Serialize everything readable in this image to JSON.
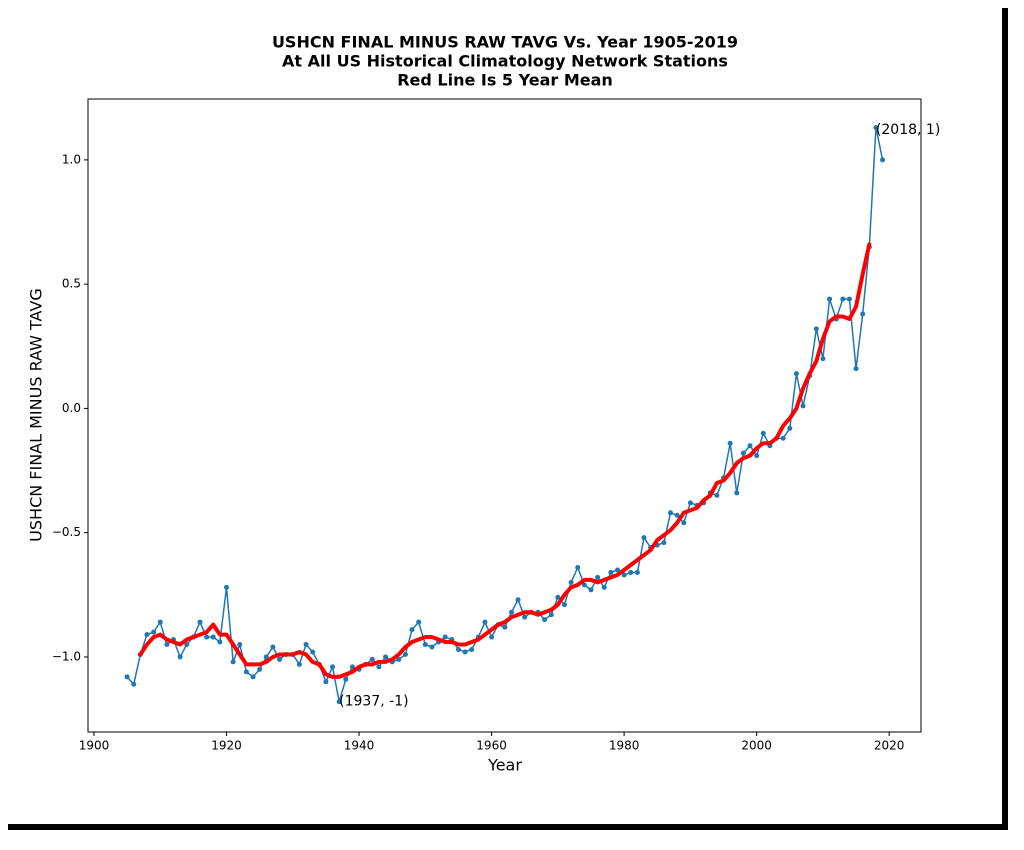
{
  "chart_data": {
    "type": "line",
    "title": [
      "USHCN FINAL MINUS RAW TAVG Vs. Year 1905-2019",
      "At All US Historical Climatology Network Stations",
      "Red Line Is 5 Year Mean"
    ],
    "xlabel": "Year",
    "ylabel": "USHCN FINAL MINUS RAW TAVG",
    "xlim": [
      1899.1,
      2024.8
    ],
    "ylim": [
      -1.302,
      1.245
    ],
    "xticks": [
      1900,
      1920,
      1940,
      1960,
      1980,
      2000,
      2020
    ],
    "yticks": [
      {
        "value": -1.0,
        "label": "−1.0"
      },
      {
        "value": -0.5,
        "label": "−0.5"
      },
      {
        "value": 0.0,
        "label": "0.0"
      },
      {
        "value": 0.5,
        "label": "0.5"
      },
      {
        "value": 1.0,
        "label": "1.0"
      }
    ],
    "series": [
      {
        "color": "#1f77b4",
        "marker": true,
        "linewidth": 1.5,
        "x": [
          1905,
          1906,
          1907,
          1908,
          1909,
          1910,
          1911,
          1912,
          1913,
          1914,
          1915,
          1916,
          1917,
          1918,
          1919,
          1920,
          1921,
          1922,
          1923,
          1924,
          1925,
          1926,
          1927,
          1928,
          1929,
          1930,
          1931,
          1932,
          1933,
          1934,
          1935,
          1936,
          1937,
          1938,
          1939,
          1940,
          1941,
          1942,
          1943,
          1944,
          1945,
          1946,
          1947,
          1948,
          1949,
          1950,
          1951,
          1952,
          1953,
          1954,
          1955,
          1956,
          1957,
          1958,
          1959,
          1960,
          1961,
          1962,
          1963,
          1964,
          1965,
          1966,
          1967,
          1968,
          1969,
          1970,
          1971,
          1972,
          1973,
          1974,
          1975,
          1976,
          1977,
          1978,
          1979,
          1980,
          1981,
          1982,
          1983,
          1984,
          1985,
          1986,
          1987,
          1988,
          1989,
          1990,
          1991,
          1992,
          1993,
          1994,
          1995,
          1996,
          1997,
          1998,
          1999,
          2000,
          2001,
          2002,
          2003,
          2004,
          2005,
          2006,
          2007,
          2008,
          2009,
          2010,
          2011,
          2012,
          2013,
          2014,
          2015,
          2016,
          2017,
          2018,
          2019
        ],
        "values": [
          -1.08,
          -1.11,
          -0.99,
          -0.91,
          -0.9,
          -0.86,
          -0.95,
          -0.93,
          -1.0,
          -0.95,
          -0.92,
          -0.86,
          -0.92,
          -0.92,
          -0.94,
          -0.72,
          -1.02,
          -0.95,
          -1.06,
          -1.08,
          -1.05,
          -1.0,
          -0.96,
          -1.01,
          -0.99,
          -0.99,
          -1.03,
          -0.95,
          -0.98,
          -1.03,
          -1.1,
          -1.04,
          -1.18,
          -1.09,
          -1.04,
          -1.05,
          -1.03,
          -1.01,
          -1.04,
          -1.0,
          -1.02,
          -1.01,
          -0.99,
          -0.89,
          -0.86,
          -0.95,
          -0.96,
          -0.94,
          -0.92,
          -0.93,
          -0.97,
          -0.98,
          -0.97,
          -0.92,
          -0.86,
          -0.92,
          -0.87,
          -0.88,
          -0.82,
          -0.77,
          -0.84,
          -0.82,
          -0.82,
          -0.85,
          -0.83,
          -0.76,
          -0.79,
          -0.7,
          -0.64,
          -0.71,
          -0.73,
          -0.68,
          -0.72,
          -0.66,
          -0.65,
          -0.67,
          -0.66,
          -0.66,
          -0.52,
          -0.56,
          -0.55,
          -0.54,
          -0.42,
          -0.43,
          -0.46,
          -0.38,
          -0.39,
          -0.38,
          -0.34,
          -0.35,
          -0.28,
          -0.14,
          -0.34,
          -0.18,
          -0.15,
          -0.19,
          -0.1,
          -0.15,
          -0.12,
          -0.12,
          -0.08,
          0.14,
          0.01,
          0.13,
          0.32,
          0.2,
          0.44,
          0.36,
          0.44,
          0.44,
          0.16,
          0.38,
          0.65,
          1.13,
          1.0
        ]
      },
      {
        "color": "#ff0000",
        "marker": false,
        "linewidth": 4,
        "x": [
          1907,
          1908,
          1909,
          1910,
          1911,
          1912,
          1913,
          1914,
          1915,
          1916,
          1917,
          1918,
          1919,
          1920,
          1921,
          1922,
          1923,
          1924,
          1925,
          1926,
          1927,
          1928,
          1929,
          1930,
          1931,
          1932,
          1933,
          1934,
          1935,
          1936,
          1937,
          1938,
          1939,
          1940,
          1941,
          1942,
          1943,
          1944,
          1945,
          1946,
          1947,
          1948,
          1949,
          1950,
          1951,
          1952,
          1953,
          1954,
          1955,
          1956,
          1957,
          1958,
          1959,
          1960,
          1961,
          1962,
          1963,
          1964,
          1965,
          1966,
          1967,
          1968,
          1969,
          1970,
          1971,
          1972,
          1973,
          1974,
          1975,
          1976,
          1977,
          1978,
          1979,
          1980,
          1981,
          1982,
          1983,
          1984,
          1985,
          1986,
          1987,
          1988,
          1989,
          1990,
          1991,
          1992,
          1993,
          1994,
          1995,
          1996,
          1997,
          1998,
          1999,
          2000,
          2001,
          2002,
          2003,
          2004,
          2005,
          2006,
          2007,
          2008,
          2009,
          2010,
          2011,
          2012,
          2013,
          2014,
          2015,
          2016,
          2017
        ],
        "values": [
          -0.99,
          -0.95,
          -0.92,
          -0.91,
          -0.93,
          -0.94,
          -0.95,
          -0.93,
          -0.92,
          -0.91,
          -0.9,
          -0.87,
          -0.91,
          -0.91,
          -0.95,
          -0.99,
          -1.03,
          -1.03,
          -1.03,
          -1.02,
          -1.0,
          -0.99,
          -0.99,
          -0.99,
          -0.98,
          -0.99,
          -1.02,
          -1.03,
          -1.07,
          -1.08,
          -1.08,
          -1.07,
          -1.06,
          -1.04,
          -1.03,
          -1.03,
          -1.02,
          -1.02,
          -1.01,
          -0.99,
          -0.96,
          -0.94,
          -0.93,
          -0.92,
          -0.92,
          -0.93,
          -0.94,
          -0.94,
          -0.95,
          -0.95,
          -0.94,
          -0.93,
          -0.91,
          -0.89,
          -0.87,
          -0.86,
          -0.84,
          -0.83,
          -0.82,
          -0.82,
          -0.83,
          -0.82,
          -0.81,
          -0.79,
          -0.75,
          -0.72,
          -0.71,
          -0.69,
          -0.69,
          -0.7,
          -0.69,
          -0.68,
          -0.67,
          -0.65,
          -0.63,
          -0.61,
          -0.59,
          -0.57,
          -0.53,
          -0.51,
          -0.49,
          -0.46,
          -0.42,
          -0.41,
          -0.4,
          -0.37,
          -0.35,
          -0.3,
          -0.29,
          -0.26,
          -0.22,
          -0.2,
          -0.19,
          -0.16,
          -0.14,
          -0.14,
          -0.12,
          -0.07,
          -0.04,
          0.0,
          0.08,
          0.14,
          0.19,
          0.28,
          0.35,
          0.37,
          0.37,
          0.36,
          0.41,
          0.54,
          0.66
        ]
      }
    ],
    "annotations": [
      {
        "text": "(1937, -1)",
        "x": 1937,
        "y": -1.18
      },
      {
        "text": "(2018, 1)",
        "x": 2018,
        "y": 1.12
      }
    ]
  }
}
